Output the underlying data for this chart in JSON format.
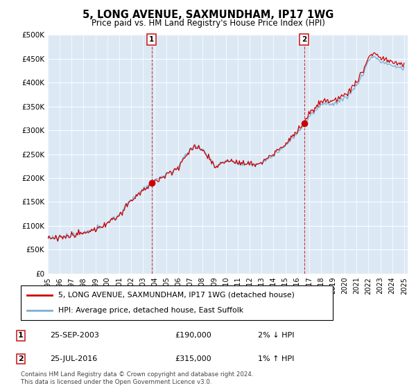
{
  "title": "5, LONG AVENUE, SAXMUNDHAM, IP17 1WG",
  "subtitle": "Price paid vs. HM Land Registry's House Price Index (HPI)",
  "ylim": [
    0,
    500000
  ],
  "yticks": [
    0,
    50000,
    100000,
    150000,
    200000,
    250000,
    300000,
    350000,
    400000,
    450000,
    500000
  ],
  "ytick_labels": [
    "£0",
    "£50K",
    "£100K",
    "£150K",
    "£200K",
    "£250K",
    "£300K",
    "£350K",
    "£400K",
    "£450K",
    "£500K"
  ],
  "background_color": "#ffffff",
  "plot_bg_color": "#dce9f5",
  "hpi_color": "#7bafd4",
  "price_color": "#cc0000",
  "vline_color": "#cc2222",
  "transaction1": {
    "date": "25-SEP-2003",
    "price": 190000,
    "label": "2% ↓ HPI",
    "num": "1",
    "year": 2003.75
  },
  "transaction2": {
    "date": "25-JUL-2016",
    "price": 315000,
    "label": "1% ↑ HPI",
    "num": "2",
    "year": 2016.58
  },
  "legend_line1": "5, LONG AVENUE, SAXMUNDHAM, IP17 1WG (detached house)",
  "legend_line2": "HPI: Average price, detached house, East Suffolk",
  "footer": "Contains HM Land Registry data © Crown copyright and database right 2024.\nThis data is licensed under the Open Government Licence v3.0.",
  "x_start_year": 1995,
  "x_end_year": 2025
}
